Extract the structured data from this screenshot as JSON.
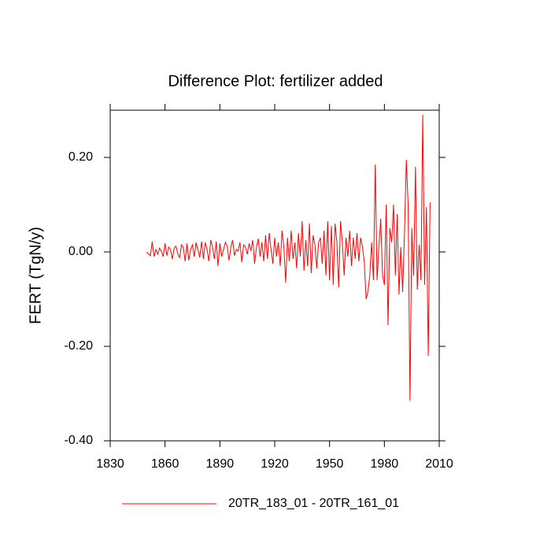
{
  "chart_data": {
    "type": "line",
    "title": "Difference Plot: fertilizer added",
    "y_label": "FERT  (TgN/y)",
    "x": [
      1850,
      1851,
      1852,
      1853,
      1854,
      1855,
      1856,
      1857,
      1858,
      1859,
      1860,
      1861,
      1862,
      1863,
      1864,
      1865,
      1866,
      1867,
      1868,
      1869,
      1870,
      1871,
      1872,
      1873,
      1874,
      1875,
      1876,
      1877,
      1878,
      1879,
      1880,
      1881,
      1882,
      1883,
      1884,
      1885,
      1886,
      1887,
      1888,
      1889,
      1890,
      1891,
      1892,
      1893,
      1894,
      1895,
      1896,
      1897,
      1898,
      1899,
      1900,
      1901,
      1902,
      1903,
      1904,
      1905,
      1906,
      1907,
      1908,
      1909,
      1910,
      1911,
      1912,
      1913,
      1914,
      1915,
      1916,
      1917,
      1918,
      1919,
      1920,
      1921,
      1922,
      1923,
      1924,
      1925,
      1926,
      1927,
      1928,
      1929,
      1930,
      1931,
      1932,
      1933,
      1934,
      1935,
      1936,
      1937,
      1938,
      1939,
      1940,
      1941,
      1942,
      1943,
      1944,
      1945,
      1946,
      1947,
      1948,
      1949,
      1950,
      1951,
      1952,
      1953,
      1954,
      1955,
      1956,
      1957,
      1958,
      1959,
      1960,
      1961,
      1962,
      1963,
      1964,
      1965,
      1966,
      1967,
      1968,
      1969,
      1970,
      1971,
      1972,
      1973,
      1974,
      1975,
      1976,
      1977,
      1978,
      1979,
      1980,
      1981,
      1982,
      1983,
      1984,
      1985,
      1986,
      1987,
      1988,
      1989,
      1990,
      1991,
      1992,
      1993,
      1994,
      1995,
      1996,
      1997,
      1998,
      1999,
      2000,
      2001,
      2002,
      2003,
      2004,
      2005
    ],
    "series": [
      {
        "name": "20TR_183_01 - 20TR_161_01",
        "color": "#ff0000",
        "values": [
          0,
          -0.005,
          -0.008,
          0.022,
          -0.01,
          0.005,
          -0.005,
          0.008,
          0.002,
          -0.01,
          0.018,
          -0.008,
          0.01,
          0.005,
          -0.015,
          0.008,
          0.012,
          -0.005,
          -0.012,
          0.015,
          0.01,
          -0.02,
          0.018,
          -0.018,
          0.005,
          0.015,
          -0.01,
          0.02,
          0.005,
          -0.012,
          0.022,
          -0.015,
          0.02,
          0.005,
          -0.02,
          0.025,
          0.01,
          -0.015,
          0.022,
          -0.03,
          0.018,
          -0.01,
          0.005,
          0.02,
          0.012,
          -0.018,
          0.01,
          0.025,
          -0.008,
          0.005,
          0.002,
          0.02,
          -0.022,
          0.015,
          0.01,
          -0.005,
          0.018,
          0.002,
          0.025,
          -0.025,
          0.01,
          0.028,
          -0.01,
          0.02,
          -0.02,
          0.035,
          -0.015,
          0.04,
          0.005,
          -0.025,
          0.03,
          -0.01,
          0.02,
          -0.03,
          0.045,
          0.01,
          -0.065,
          0.03,
          -0.02,
          0.045,
          -0.015,
          0.02,
          -0.035,
          0.04,
          -0.01,
          0.065,
          -0.04,
          0.025,
          -0.03,
          0.06,
          -0.045,
          0.035,
          0.015,
          -0.035,
          0.02,
          0.03,
          -0.025,
          0.045,
          -0.05,
          0.065,
          -0.06,
          0.055,
          -0.07,
          0.06,
          0.02,
          -0.075,
          0.065,
          0.02,
          -0.05,
          0.03,
          -0.01,
          0.045,
          -0.03,
          0.03,
          -0.015,
          0.04,
          -0.02,
          0.03,
          0.01,
          -0.02,
          -0.1,
          -0.085,
          -0.05,
          0.02,
          -0.06,
          0.185,
          -0.06,
          0.01,
          0.07,
          -0.05,
          -0.07,
          0.1,
          -0.155,
          0.05,
          0.02,
          0.1,
          -0.05,
          0.08,
          -0.09,
          0.01,
          -0.085,
          0.04,
          0.195,
          0.1,
          -0.315,
          0.05,
          -0.05,
          0.18,
          -0.08,
          0.015,
          -0.06,
          0.29,
          -0.07,
          0.095,
          -0.22,
          0.105
        ]
      }
    ],
    "xlim": [
      1830,
      2010
    ],
    "xticks": [
      1830,
      1860,
      1890,
      1920,
      1950,
      1980,
      2010
    ],
    "ylim": [
      -0.4,
      0.3
    ],
    "yticks": [
      {
        "value": 0.2,
        "label": "0.20"
      },
      {
        "value": 0,
        "label": "0.00"
      },
      {
        "value": -0.2,
        "label": "-0.20"
      },
      {
        "value": -0.4,
        "label": "-0.40"
      }
    ]
  }
}
